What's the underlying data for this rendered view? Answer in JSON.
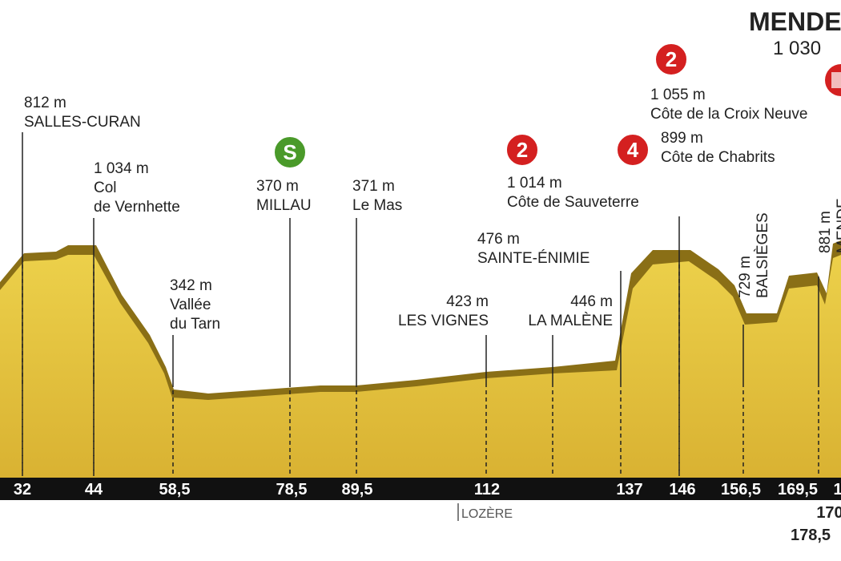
{
  "finish": {
    "name": "MENDE",
    "altitude": "1 030"
  },
  "labels": [
    {
      "altitude": "812 m",
      "name": [
        "SALLES-CURAN"
      ]
    },
    {
      "altitude": "1 034 m",
      "name": [
        "Col",
        "de Vernhette"
      ]
    },
    {
      "altitude": "342 m",
      "name": [
        "Vallée",
        "du Tarn"
      ]
    },
    {
      "altitude": "370 m",
      "name": [
        "MILLAU"
      ]
    },
    {
      "altitude": "371 m",
      "name": [
        "Le Mas"
      ]
    },
    {
      "altitude": "423 m",
      "name": [
        "LES VIGNES"
      ]
    },
    {
      "altitude": "446 m",
      "name": [
        "LA MALÈNE"
      ]
    },
    {
      "altitude": "476 m",
      "name": [
        "SAINTE-ÉNIMIE"
      ]
    },
    {
      "altitude": "1 014 m",
      "name": [
        "Côte de Sauveterre"
      ]
    },
    {
      "altitude": "1 055 m",
      "name": [
        "Côte de la Croix Neuve"
      ]
    },
    {
      "altitude": "899 m",
      "name": [
        "Côte de Chabrits"
      ]
    },
    {
      "altitude": "729 m",
      "name": [
        "BALSIÈGES"
      ]
    },
    {
      "altitude": "881 m",
      "name": [
        "MENDE"
      ]
    }
  ],
  "badges": [
    "2",
    "S",
    "2",
    "4"
  ],
  "km": [
    "32",
    "44",
    "58,5",
    "78,5",
    "89,5",
    "112",
    "137",
    "146",
    "156,5",
    "169,5",
    "1",
    "170",
    "178,5"
  ],
  "region": "LOZÈRE"
}
